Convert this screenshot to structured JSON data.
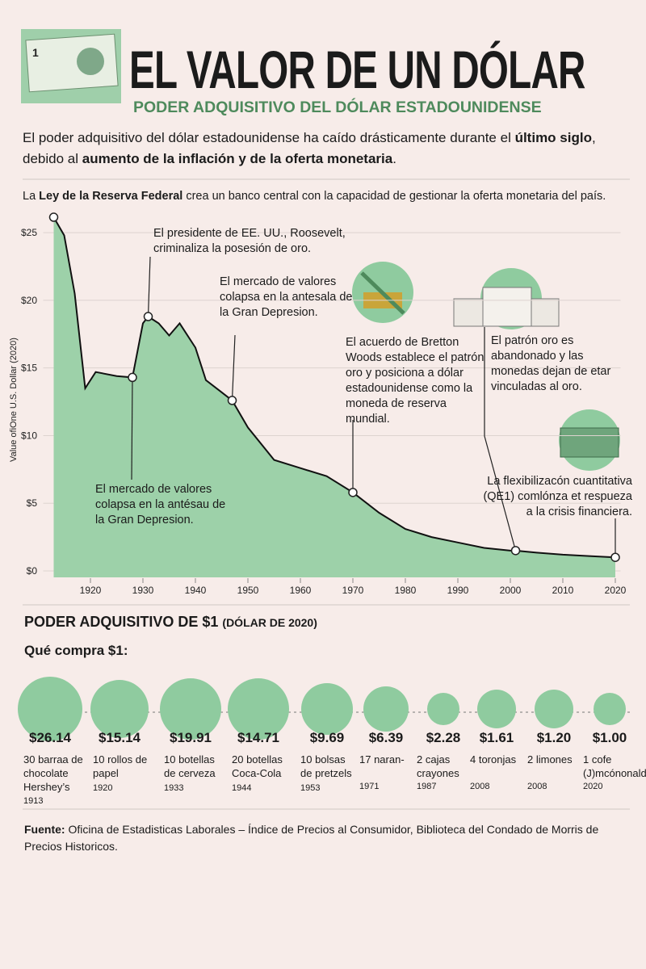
{
  "header": {
    "title": "EL VALOR DE UN DÓLAR",
    "subtitle": "PODER ADQUISITIVO DEL DÓLAR ESTADOUNIDENSE",
    "intro": [
      {
        "text": "El poder adquisitivo del dólar estadounidense ha caído drásticamente durante el "
      },
      {
        "text": "último siglo",
        "bold": true
      },
      {
        "text": ", debido al "
      },
      {
        "text": "aumento de la inflación y de la oferta monetaria",
        "bold": true
      },
      {
        "text": "."
      }
    ]
  },
  "chart_data": {
    "type": "area",
    "color": "#9dd1a9",
    "line_color": "#111111",
    "y_label": "Value ofiOne U.S. Dollar (2020)",
    "x": [
      1913,
      1915,
      1917,
      1919,
      1921,
      1925,
      1928,
      1930,
      1931,
      1933,
      1935,
      1937,
      1940,
      1942,
      1945,
      1947,
      1950,
      1955,
      1960,
      1965,
      1970,
      1975,
      1980,
      1985,
      1990,
      1995,
      2000,
      2001,
      2005,
      2010,
      2015,
      2020
    ],
    "values": [
      26.14,
      24.8,
      20.5,
      13.5,
      14.7,
      14.4,
      14.3,
      18.3,
      18.8,
      18.3,
      17.4,
      18.3,
      16.5,
      14.1,
      13.2,
      12.6,
      10.6,
      8.2,
      7.6,
      7.0,
      5.8,
      4.3,
      3.1,
      2.5,
      2.1,
      1.7,
      1.5,
      1.5,
      1.35,
      1.2,
      1.1,
      1.0
    ],
    "xlim": [
      1911,
      2021
    ],
    "xticks": [
      1920,
      1930,
      1940,
      1950,
      1960,
      1970,
      1980,
      1990,
      2000,
      2010,
      2020
    ],
    "ylim": [
      0,
      26.5
    ],
    "yticks": [
      {
        "value": 0,
        "label": "$0"
      },
      {
        "value": 5,
        "label": "$5"
      },
      {
        "value": 10,
        "label": "$10"
      },
      {
        "value": 15,
        "label": "$15"
      },
      {
        "value": 20,
        "label": "$20"
      },
      {
        "value": 25,
        "label": "$25"
      }
    ],
    "grid": true,
    "annotations": [
      {
        "x": 1913,
        "y": 26.14,
        "text": [
          {
            "text": "La "
          },
          {
            "text": "Ley de la Reserva Federal",
            "bold": true
          },
          {
            "text": " crea un banco central con la capacidad de gestionar la oferta monetaria del país."
          }
        ]
      },
      {
        "x": 1931,
        "y": 18.8,
        "text": [
          {
            "text": "El presidente de EE. UU., Roosevelt, criminaliza la posesión de oro."
          }
        ]
      },
      {
        "x": 1947,
        "y": 12.6,
        "text": [
          {
            "text": "El mercado de valores colapsa en la antesala de la Gran Depresion."
          }
        ]
      },
      {
        "x": 1928,
        "y": 14.3,
        "text": [
          {
            "text": "El mercado de valores colapsa en la antésau de la Gran Depresion."
          }
        ]
      },
      {
        "x": 1970,
        "y": 5.8,
        "text": [
          {
            "text": "El acuerdo de Bretton Woods establece el patrón oro y posiciona a dólar estadounidense como la moneda de reserva mundial."
          }
        ]
      },
      {
        "x": 2001,
        "y": 1.5,
        "text": [
          {
            "text": "El patrón oro es abandonado y las monedas dejan de etar vinculadas al oro."
          }
        ]
      },
      {
        "x": 2020,
        "y": 1.0,
        "text": [
          {
            "text": "La flexibilizacón cuantitativa (QE1) comlónza et respueza a la crisis financiera."
          }
        ]
      }
    ]
  },
  "purchasing": {
    "title": "PODER ADQUISITIVO DE $1",
    "title_note": "(DÓLAR DE 2020)",
    "subtitle": "Qué compra $1:",
    "items": [
      {
        "price": "$26.14",
        "description": "30 barraa de chocolate Hershey’s",
        "year": "1913"
      },
      {
        "price": "$15.14",
        "description": "10 rollos de papel",
        "year": "1920"
      },
      {
        "price": "$19.91",
        "description": "10 botellas de cerveza",
        "year": "1933"
      },
      {
        "price": "$14.71",
        "description": "20 botellas Coca-Cola",
        "year": "1944"
      },
      {
        "price": "$9.69",
        "description": "10 bolsas de pretzels",
        "year": "1953"
      },
      {
        "price": "$6.39",
        "description": "17 naran-",
        "year": "1971"
      },
      {
        "price": "$2.28",
        "description": "2 cajas crayones",
        "year": "1987"
      },
      {
        "price": "$1.61",
        "description": "4 toronjas",
        "year": "2008"
      },
      {
        "price": "$1.20",
        "description": "2 limones",
        "year": "2008"
      },
      {
        "price": "$1.00",
        "description": "1 cofe (J)mcónonald's",
        "year": "2020"
      }
    ]
  },
  "source": {
    "label": "Fuente:",
    "text": " Oficina de Estadisticas Laborales – Índice de Precios al Consumidor, Biblioteca del Condado de Morris de Precios Historicos."
  }
}
